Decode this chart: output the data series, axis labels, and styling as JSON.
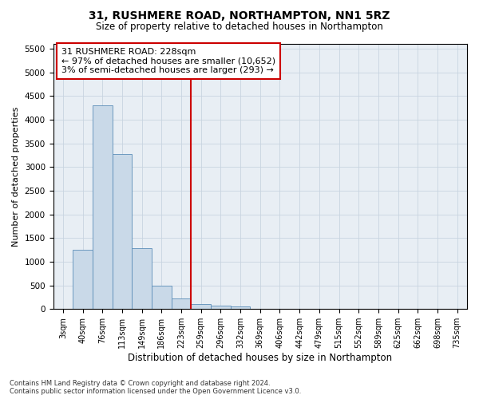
{
  "title": "31, RUSHMERE ROAD, NORTHAMPTON, NN1 5RZ",
  "subtitle": "Size of property relative to detached houses in Northampton",
  "xlabel": "Distribution of detached houses by size in Northampton",
  "ylabel": "Number of detached properties",
  "footnote": "Contains HM Land Registry data © Crown copyright and database right 2024.\nContains public sector information licensed under the Open Government Licence v3.0.",
  "bar_labels": [
    "3sqm",
    "40sqm",
    "76sqm",
    "113sqm",
    "149sqm",
    "186sqm",
    "223sqm",
    "259sqm",
    "296sqm",
    "332sqm",
    "369sqm",
    "406sqm",
    "442sqm",
    "479sqm",
    "515sqm",
    "552sqm",
    "589sqm",
    "625sqm",
    "662sqm",
    "698sqm",
    "735sqm"
  ],
  "bar_values": [
    0,
    1250,
    4300,
    3280,
    1290,
    500,
    225,
    105,
    65,
    55,
    0,
    0,
    0,
    0,
    0,
    0,
    0,
    0,
    0,
    0,
    0
  ],
  "bar_color": "#c9d9e8",
  "bar_edge_color": "#5b8db8",
  "property_line_x": 6.5,
  "property_line_color": "#cc0000",
  "annotation_text": "31 RUSHMERE ROAD: 228sqm\n← 97% of detached houses are smaller (10,652)\n3% of semi-detached houses are larger (293) →",
  "annotation_box_color": "#cc0000",
  "ylim": [
    0,
    5600
  ],
  "yticks": [
    0,
    500,
    1000,
    1500,
    2000,
    2500,
    3000,
    3500,
    4000,
    4500,
    5000,
    5500
  ],
  "grid_color": "#c8d4e0",
  "background_color": "#e8eef4"
}
